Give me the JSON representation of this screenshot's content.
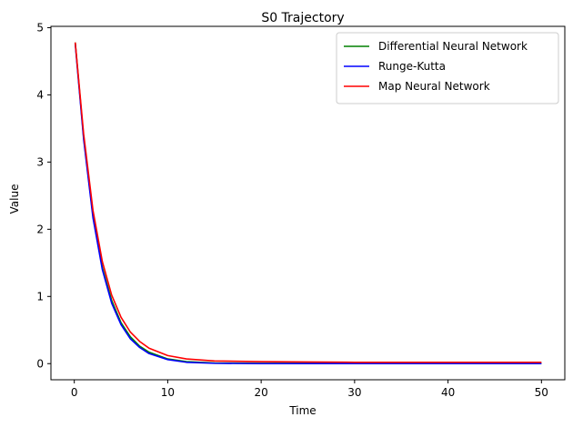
{
  "chart_data": {
    "type": "line",
    "title": "S0 Trajectory",
    "xlabel": "Time",
    "ylabel": "Value",
    "xlim": [
      -2.5,
      52.5
    ],
    "ylim": [
      -0.24,
      5.02
    ],
    "xticks": [
      0,
      10,
      20,
      30,
      40,
      50
    ],
    "yticks": [
      0,
      1,
      2,
      3,
      4,
      5
    ],
    "grid": false,
    "legend_position": "top-right",
    "series": [
      {
        "name": "Differential Neural Network",
        "color": "#008000",
        "x": [
          0.1,
          1,
          2,
          3,
          4,
          5,
          6,
          7,
          8,
          10,
          12,
          15,
          20,
          25,
          30,
          40,
          50
        ],
        "y": [
          4.78,
          3.37,
          2.2,
          1.43,
          0.94,
          0.61,
          0.4,
          0.26,
          0.17,
          0.07,
          0.03,
          0.01,
          0.005,
          0.005,
          0.005,
          0.005,
          0.005
        ]
      },
      {
        "name": "Runge-Kutta",
        "color": "#0000ff",
        "x": [
          0.1,
          1,
          2,
          3,
          4,
          5,
          6,
          7,
          8,
          10,
          12,
          15,
          20,
          25,
          30,
          40,
          50
        ],
        "y": [
          4.76,
          3.34,
          2.17,
          1.4,
          0.9,
          0.58,
          0.37,
          0.24,
          0.15,
          0.06,
          0.02,
          0.005,
          0.0,
          0.0,
          0.0,
          0.0,
          0.0
        ]
      },
      {
        "name": "Map Neural Network",
        "color": "#ff0000",
        "x": [
          0.1,
          1,
          2,
          3,
          4,
          5,
          6,
          7,
          8,
          10,
          12,
          15,
          20,
          25,
          30,
          40,
          50
        ],
        "y": [
          4.78,
          3.42,
          2.28,
          1.52,
          1.02,
          0.69,
          0.47,
          0.33,
          0.23,
          0.12,
          0.07,
          0.04,
          0.03,
          0.025,
          0.02,
          0.02,
          0.02
        ]
      }
    ]
  }
}
